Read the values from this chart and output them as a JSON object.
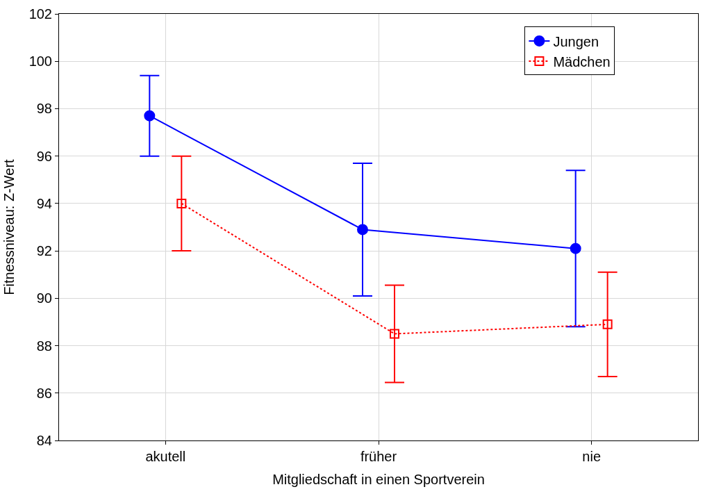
{
  "chart_data": {
    "type": "line",
    "xlabel": "Mitgliedschaft in einen Sportverein",
    "ylabel": "Fitnessniveau: Z-Wert",
    "categories": [
      "akutell",
      "früher",
      "nie"
    ],
    "series": [
      {
        "name": "Jungen",
        "color": "#0000ff",
        "values": [
          97.7,
          92.9,
          92.1
        ],
        "errors": [
          1.7,
          2.8,
          3.3
        ],
        "marker": "circle",
        "line_style": "solid"
      },
      {
        "name": "Mädchen",
        "color": "#ff0000",
        "values": [
          94.0,
          88.5,
          88.9
        ],
        "errors": [
          2.0,
          2.05,
          2.2
        ],
        "marker": "square",
        "line_style": "dotted"
      }
    ],
    "ylim": [
      84,
      102
    ],
    "yticks": [
      84,
      86,
      88,
      90,
      92,
      94,
      96,
      98,
      100,
      102
    ],
    "grid": true,
    "legend": "top right"
  }
}
